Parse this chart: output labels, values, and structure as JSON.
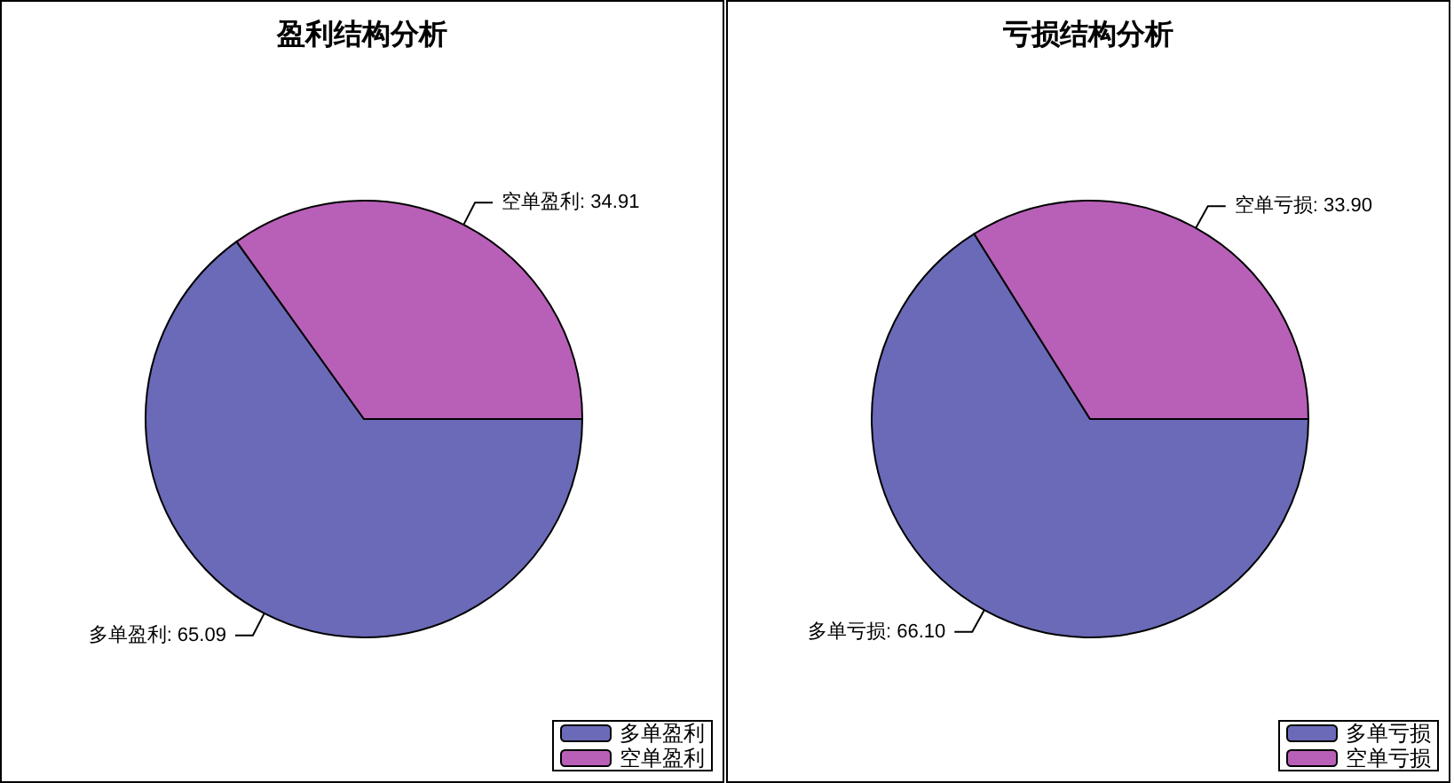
{
  "chart_data": [
    {
      "type": "pie",
      "title": "盈利结构分析",
      "categories": [
        "多单盈利",
        "空单盈利"
      ],
      "values": [
        65.09,
        34.91
      ],
      "value_labels": [
        "多单盈利: 65.09",
        "空单盈利: 34.91"
      ],
      "colors": [
        "#6a6ab8",
        "#b860b8"
      ],
      "legend": "bottom right"
    },
    {
      "type": "pie",
      "title": "亏损结构分析",
      "categories": [
        "多单亏损",
        "空单亏损"
      ],
      "values": [
        66.1,
        33.9
      ],
      "value_labels": [
        "多单亏损: 66.10",
        "空单亏损: 33.90"
      ],
      "colors": [
        "#6a6ab8",
        "#b860b8"
      ],
      "legend": "bottom right"
    }
  ]
}
